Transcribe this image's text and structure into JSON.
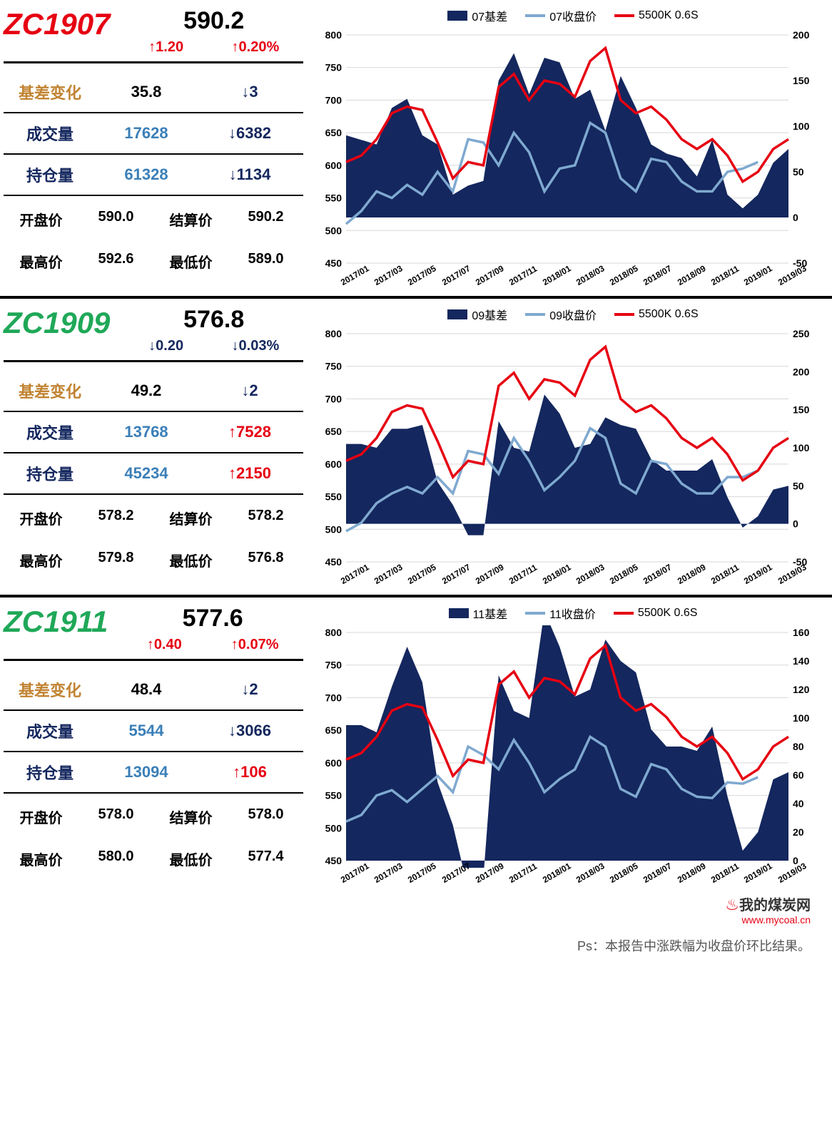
{
  "panels": [
    {
      "ticker": "ZC1907",
      "ticker_color": "#e60012",
      "price": "590.2",
      "change_abs": "↑1.20",
      "change_abs_color": "#e60012",
      "change_pct": "↑0.20%",
      "change_pct_color": "#e60012",
      "rows": [
        {
          "label": "基差变化",
          "label_color": "#c18332",
          "val": "35.8",
          "val_color": "#000",
          "delta": "↓3",
          "delta_color": "#14275e"
        },
        {
          "label": "成交量",
          "label_color": "#14275e",
          "val": "17628",
          "val_color": "#3a7fb8",
          "delta": "↓6382",
          "delta_color": "#14275e"
        },
        {
          "label": "持仓量",
          "label_color": "#14275e",
          "val": "61328",
          "val_color": "#3a7fb8",
          "delta": "↓1134",
          "delta_color": "#14275e"
        }
      ],
      "sub": [
        {
          "l": "开盘价",
          "v": "590.0"
        },
        {
          "l": "结算价",
          "v": "590.2"
        },
        {
          "l": "最高价",
          "v": "592.6"
        },
        {
          "l": "最低价",
          "v": "589.0"
        }
      ],
      "chart": {
        "legend": [
          {
            "t": "07基差",
            "s": "box"
          },
          {
            "t": "07收盘价",
            "s": "lblue"
          },
          {
            "t": "5500K 0.6S",
            "s": "red"
          }
        ],
        "yleft": [
          450,
          500,
          550,
          600,
          650,
          700,
          750,
          800
        ],
        "ylim_left": [
          450,
          800
        ],
        "yright": [
          -50,
          0,
          50,
          100,
          150,
          200
        ],
        "ylim_right": [
          -50,
          200
        ],
        "xlabels": [
          "2017/01",
          "2017/03",
          "2017/05",
          "2017/07",
          "2017/09",
          "2017/11",
          "2018/01",
          "2018/03",
          "2018/05",
          "2018/07",
          "2018/09",
          "2018/11",
          "2019/01",
          "2019/03"
        ],
        "colors": {
          "area": "#14275e",
          "line_close": "#7fa9d0",
          "line_ref": "#e60012",
          "grid": "#d7d7d7",
          "bg": "#ffffff"
        },
        "series_close": [
          510,
          530,
          560,
          550,
          570,
          555,
          590,
          560,
          640,
          635,
          600,
          650,
          620,
          560,
          595,
          600,
          665,
          650,
          580,
          560,
          610,
          605,
          575,
          560,
          560,
          590,
          595,
          605
        ],
        "series_ref": [
          605,
          615,
          640,
          680,
          690,
          685,
          635,
          580,
          605,
          600,
          720,
          740,
          700,
          730,
          725,
          705,
          760,
          780,
          700,
          680,
          690,
          670,
          640,
          625,
          640,
          615,
          575,
          590,
          625,
          640
        ],
        "series_basis": [
          90,
          85,
          80,
          120,
          130,
          90,
          80,
          25,
          35,
          40,
          150,
          180,
          135,
          175,
          170,
          130,
          140,
          95,
          155,
          120,
          80,
          70,
          65,
          45,
          85,
          25,
          10,
          25,
          60,
          75
        ]
      }
    },
    {
      "ticker": "ZC1909",
      "ticker_color": "#1fa858",
      "price": "576.8",
      "change_abs": "↓0.20",
      "change_abs_color": "#14275e",
      "change_pct": "↓0.03%",
      "change_pct_color": "#14275e",
      "rows": [
        {
          "label": "基差变化",
          "label_color": "#c18332",
          "val": "49.2",
          "val_color": "#000",
          "delta": "↓2",
          "delta_color": "#14275e"
        },
        {
          "label": "成交量",
          "label_color": "#14275e",
          "val": "13768",
          "val_color": "#3a7fb8",
          "delta": "↑7528",
          "delta_color": "#e60012"
        },
        {
          "label": "持仓量",
          "label_color": "#14275e",
          "val": "45234",
          "val_color": "#3a7fb8",
          "delta": "↑2150",
          "delta_color": "#e60012"
        }
      ],
      "sub": [
        {
          "l": "开盘价",
          "v": "578.2"
        },
        {
          "l": "结算价",
          "v": "578.2"
        },
        {
          "l": "最高价",
          "v": "579.8"
        },
        {
          "l": "最低价",
          "v": "576.8"
        }
      ],
      "chart": {
        "legend": [
          {
            "t": "09基差",
            "s": "box"
          },
          {
            "t": "09收盘价",
            "s": "lblue"
          },
          {
            "t": "5500K 0.6S",
            "s": "red"
          }
        ],
        "yleft": [
          450,
          500,
          550,
          600,
          650,
          700,
          750,
          800
        ],
        "ylim_left": [
          450,
          800
        ],
        "yright": [
          -50,
          0,
          50,
          100,
          150,
          200,
          250
        ],
        "ylim_right": [
          -50,
          250
        ],
        "xlabels": [
          "2017/01",
          "2017/03",
          "2017/05",
          "2017/07",
          "2017/09",
          "2017/11",
          "2018/01",
          "2018/03",
          "2018/05",
          "2018/07",
          "2018/09",
          "2018/11",
          "2019/01",
          "2019/03"
        ],
        "colors": {
          "area": "#14275e",
          "line_close": "#7fa9d0",
          "line_ref": "#e60012",
          "grid": "#d7d7d7",
          "bg": "#ffffff"
        },
        "series_close": [
          497,
          510,
          540,
          555,
          565,
          555,
          580,
          555,
          620,
          615,
          585,
          640,
          605,
          560,
          580,
          605,
          655,
          640,
          570,
          555,
          605,
          600,
          570,
          555,
          555,
          580,
          580,
          590
        ],
        "series_ref": [
          605,
          615,
          640,
          680,
          690,
          685,
          635,
          580,
          605,
          600,
          720,
          740,
          700,
          730,
          725,
          705,
          760,
          780,
          700,
          680,
          690,
          670,
          640,
          625,
          640,
          615,
          575,
          590,
          625,
          640
        ],
        "series_basis": [
          105,
          105,
          100,
          125,
          125,
          130,
          55,
          25,
          -15,
          -15,
          135,
          100,
          95,
          170,
          145,
          100,
          105,
          140,
          130,
          125,
          85,
          70,
          70,
          70,
          85,
          35,
          -5,
          10,
          45,
          50
        ]
      }
    },
    {
      "ticker": "ZC1911",
      "ticker_color": "#1fa858",
      "price": "577.6",
      "change_abs": "↑0.40",
      "change_abs_color": "#e60012",
      "change_pct": "↑0.07%",
      "change_pct_color": "#e60012",
      "rows": [
        {
          "label": "基差变化",
          "label_color": "#c18332",
          "val": "48.4",
          "val_color": "#000",
          "delta": "↓2",
          "delta_color": "#14275e"
        },
        {
          "label": "成交量",
          "label_color": "#14275e",
          "val": "5544",
          "val_color": "#3a7fb8",
          "delta": "↓3066",
          "delta_color": "#14275e"
        },
        {
          "label": "持仓量",
          "label_color": "#14275e",
          "val": "13094",
          "val_color": "#3a7fb8",
          "delta": "↑106",
          "delta_color": "#e60012"
        }
      ],
      "sub": [
        {
          "l": "开盘价",
          "v": "578.0"
        },
        {
          "l": "结算价",
          "v": "578.0"
        },
        {
          "l": "最高价",
          "v": "580.0"
        },
        {
          "l": "最低价",
          "v": "577.4"
        }
      ],
      "chart": {
        "legend": [
          {
            "t": "11基差",
            "s": "box"
          },
          {
            "t": "11收盘价",
            "s": "lblue"
          },
          {
            "t": "5500K 0.6S",
            "s": "red"
          }
        ],
        "yleft": [
          450,
          500,
          550,
          600,
          650,
          700,
          750,
          800
        ],
        "ylim_left": [
          450,
          800
        ],
        "yright": [
          0,
          20,
          40,
          60,
          80,
          100,
          120,
          140,
          160
        ],
        "ylim_right": [
          0,
          160
        ],
        "xlabels": [
          "2017/01",
          "2017/03",
          "2017/05",
          "2017/07",
          "2017/09",
          "2017/11",
          "2018/01",
          "2018/03",
          "2018/05",
          "2018/07",
          "2018/09",
          "2018/11",
          "2019/01",
          "2019/03"
        ],
        "colors": {
          "area": "#14275e",
          "line_close": "#7fa9d0",
          "line_ref": "#e60012",
          "grid": "#d7d7d7",
          "bg": "#ffffff"
        },
        "series_close": [
          510,
          520,
          550,
          558,
          540,
          560,
          580,
          555,
          625,
          612,
          590,
          635,
          600,
          555,
          575,
          590,
          640,
          625,
          560,
          548,
          598,
          590,
          560,
          548,
          546,
          570,
          568,
          578
        ],
        "series_ref": [
          605,
          615,
          640,
          680,
          690,
          685,
          635,
          580,
          605,
          600,
          720,
          740,
          700,
          730,
          725,
          705,
          760,
          780,
          700,
          680,
          690,
          670,
          640,
          625,
          640,
          615,
          575,
          590,
          625,
          640
        ],
        "series_basis": [
          95,
          95,
          90,
          122,
          150,
          125,
          55,
          25,
          -20,
          -12,
          130,
          105,
          100,
          175,
          150,
          115,
          120,
          155,
          140,
          132,
          92,
          80,
          80,
          77,
          94,
          45,
          7,
          20,
          57,
          62
        ]
      }
    }
  ],
  "footer_note": "Ps：本报告中涨跌幅为收盘价环比结果。",
  "watermark": {
    "site": "我的煤炭网",
    "url": "www.mycoal.cn"
  }
}
